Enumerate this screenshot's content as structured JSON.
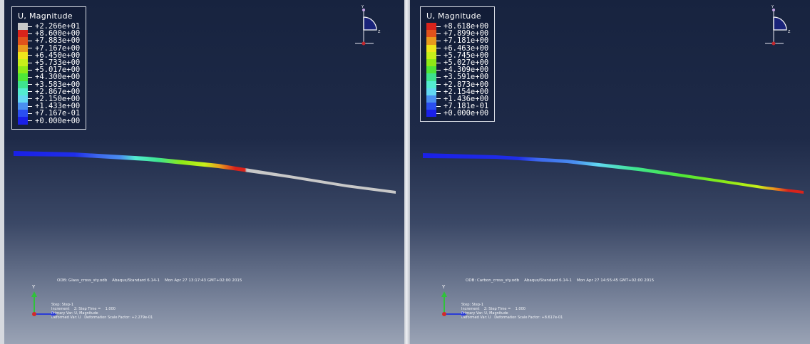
{
  "left_view": {
    "legend_title": "U, Magnitude",
    "legend": [
      {
        "value": "+2.266e+01",
        "color": "#c8c8c8"
      },
      {
        "value": "+8.600e+00",
        "color": "#d9231b"
      },
      {
        "value": "+7.883e+00",
        "color": "#e0521b"
      },
      {
        "value": "+7.167e+00",
        "color": "#e99a1d"
      },
      {
        "value": "+6.450e+00",
        "color": "#f0e61b"
      },
      {
        "value": "+5.733e+00",
        "color": "#c7f01a"
      },
      {
        "value": "+5.017e+00",
        "color": "#8fea16"
      },
      {
        "value": "+4.300e+00",
        "color": "#4fe637"
      },
      {
        "value": "+3.583e+00",
        "color": "#3ee48e"
      },
      {
        "value": "+2.867e+00",
        "color": "#53ecd0"
      },
      {
        "value": "+2.150e+00",
        "color": "#62d8f2"
      },
      {
        "value": "+1.433e+00",
        "color": "#4a8ff0"
      },
      {
        "value": "+7.167e-01",
        "color": "#2a4ef0"
      },
      {
        "value": "+0.000e+00",
        "color": "#1a20e8"
      }
    ],
    "odb_line": "ODB: Glass_cross_sty.odb    Abaqus/Standard 6.14-1    Mon Apr 27 13:17:43 GMT+02:00 2015",
    "step_line": "Step: Step-1",
    "increment_line": "Increment    2: Step Time =    1.000",
    "primary_var_line": "Primary Var: U, Magnitude",
    "deformed_var_line": "Deformed Var: U   Deformation Scale Factor: +2.279e-01",
    "axis_y": "Y",
    "triad_y": "Y",
    "triad_z": "Z"
  },
  "right_view": {
    "legend_title": "U, Magnitude",
    "legend": [
      {
        "value": "+8.618e+00",
        "color": "#d9231b"
      },
      {
        "value": "+7.899e+00",
        "color": "#e0521b"
      },
      {
        "value": "+7.181e+00",
        "color": "#e99a1d"
      },
      {
        "value": "+6.463e+00",
        "color": "#f0e61b"
      },
      {
        "value": "+5.745e+00",
        "color": "#c7f01a"
      },
      {
        "value": "+5.027e+00",
        "color": "#8fea16"
      },
      {
        "value": "+4.309e+00",
        "color": "#4fe637"
      },
      {
        "value": "+3.591e+00",
        "color": "#3ee48e"
      },
      {
        "value": "+2.873e+00",
        "color": "#53ecd0"
      },
      {
        "value": "+2.154e+00",
        "color": "#62d8f2"
      },
      {
        "value": "+1.436e+00",
        "color": "#4a8ff0"
      },
      {
        "value": "+7.181e-01",
        "color": "#2a4ef0"
      },
      {
        "value": "+0.000e+00",
        "color": "#1a20e8"
      }
    ],
    "odb_line": "ODB: Carbon_cross_sty.odb    Abaqus/Standard 6.14-1    Mon Apr 27 14:55:45 GMT+02:00 2015",
    "step_line": "Step: Step-1",
    "increment_line": "Increment    2: Step Time =    1.000",
    "primary_var_line": "Primary Var: U, Magnitude",
    "deformed_var_line": "Deformed Var: U   Deformation Scale Factor: +8.617e-01",
    "axis_y": "Y",
    "triad_y": "Y",
    "triad_z": "Z"
  }
}
